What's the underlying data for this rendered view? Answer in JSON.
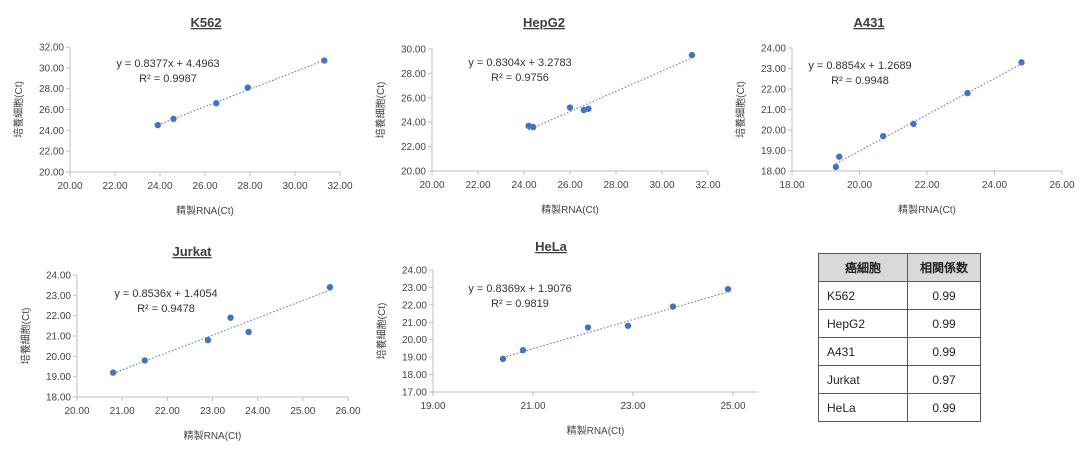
{
  "chart_data": [
    {
      "type": "scatter",
      "title": "K562",
      "xlabel": "精製RNA(Ct)",
      "ylabel": "培養細胞(Ct)",
      "xlim": [
        20,
        32
      ],
      "xstep": 2,
      "ylim": [
        20,
        32
      ],
      "ystep": 2,
      "x": [
        23.9,
        24.6,
        26.5,
        27.9,
        31.3
      ],
      "y": [
        24.5,
        25.1,
        26.6,
        28.1,
        30.7
      ],
      "equation": "y = 0.8377x + 4.4963",
      "r2": "R² = 0.9987",
      "slope": 0.8377,
      "intercept": 4.4963,
      "trend_x": [
        23.9,
        31.3
      ]
    },
    {
      "type": "scatter",
      "title": "HepG2",
      "xlabel": "精製RNA(Ct)",
      "ylabel": "培養細胞(Ct)",
      "xlim": [
        20,
        32
      ],
      "xstep": 2,
      "ylim": [
        20,
        30
      ],
      "ystep": 2,
      "x": [
        24.2,
        24.4,
        26.0,
        26.6,
        26.8,
        31.3
      ],
      "y": [
        23.7,
        23.6,
        25.2,
        25.0,
        25.1,
        29.5
      ],
      "equation": "y = 0.8304x + 3.2783",
      "r2": "R² = 0.9756",
      "slope": 0.8304,
      "intercept": 3.2783,
      "trend_x": [
        24.2,
        31.3
      ]
    },
    {
      "type": "scatter",
      "title": "A431",
      "xlabel": "精製RNA(Ct)",
      "ylabel": "培養細胞(Ct)",
      "xlim": [
        18,
        26
      ],
      "xstep": 2,
      "ylim": [
        18,
        24
      ],
      "ystep": 1,
      "x": [
        19.3,
        19.4,
        20.7,
        21.6,
        23.2,
        24.8
      ],
      "y": [
        18.2,
        18.7,
        19.7,
        20.3,
        21.8,
        23.3
      ],
      "equation": "y = 0.8854x + 1.2689",
      "r2": "R² = 0.9948",
      "slope": 0.8854,
      "intercept": 1.2689,
      "trend_x": [
        19.3,
        24.8
      ]
    },
    {
      "type": "scatter",
      "title": "Jurkat",
      "xlabel": "精製RNA(Ct)",
      "ylabel": "培養細胞(Ct)",
      "xlim": [
        20,
        26
      ],
      "xstep": 1,
      "ylim": [
        18,
        24
      ],
      "ystep": 1,
      "x": [
        20.8,
        21.5,
        22.9,
        23.4,
        23.8,
        25.6
      ],
      "y": [
        19.2,
        19.8,
        20.8,
        21.9,
        21.2,
        23.4
      ],
      "equation": "y = 0.8536x + 1.4054",
      "r2": "R² = 0.9478",
      "slope": 0.8536,
      "intercept": 1.4054,
      "trend_x": [
        20.8,
        25.6
      ]
    },
    {
      "type": "scatter",
      "title": "HeLa",
      "xlabel": "精製RNA(Ct)",
      "ylabel": "培養細胞(Ct)",
      "xlim": [
        19,
        25.5
      ],
      "xstep": 2,
      "ylim": [
        17,
        24
      ],
      "ystep": 1,
      "x": [
        20.4,
        20.8,
        22.1,
        22.9,
        23.8,
        24.9
      ],
      "y": [
        18.9,
        19.4,
        20.7,
        20.8,
        21.9,
        22.9
      ],
      "equation": "y = 0.8369x + 1.9076",
      "r2": "R² = 0.9819",
      "slope": 0.8369,
      "intercept": 1.9076,
      "trend_x": [
        20.4,
        24.9
      ]
    }
  ],
  "table": {
    "headers": [
      "癌細胞",
      "相関係数"
    ],
    "rows": [
      {
        "cell": "K562",
        "value": "0.99"
      },
      {
        "cell": "HepG2",
        "value": "0.99"
      },
      {
        "cell": "A431",
        "value": "0.99"
      },
      {
        "cell": "Jurkat",
        "value": "0.97"
      },
      {
        "cell": "HeLa",
        "value": "0.99"
      }
    ]
  },
  "colors": {
    "marker": "#4472c4",
    "axis": "#bfbfbf",
    "header_bg": "#d9d9d9"
  }
}
